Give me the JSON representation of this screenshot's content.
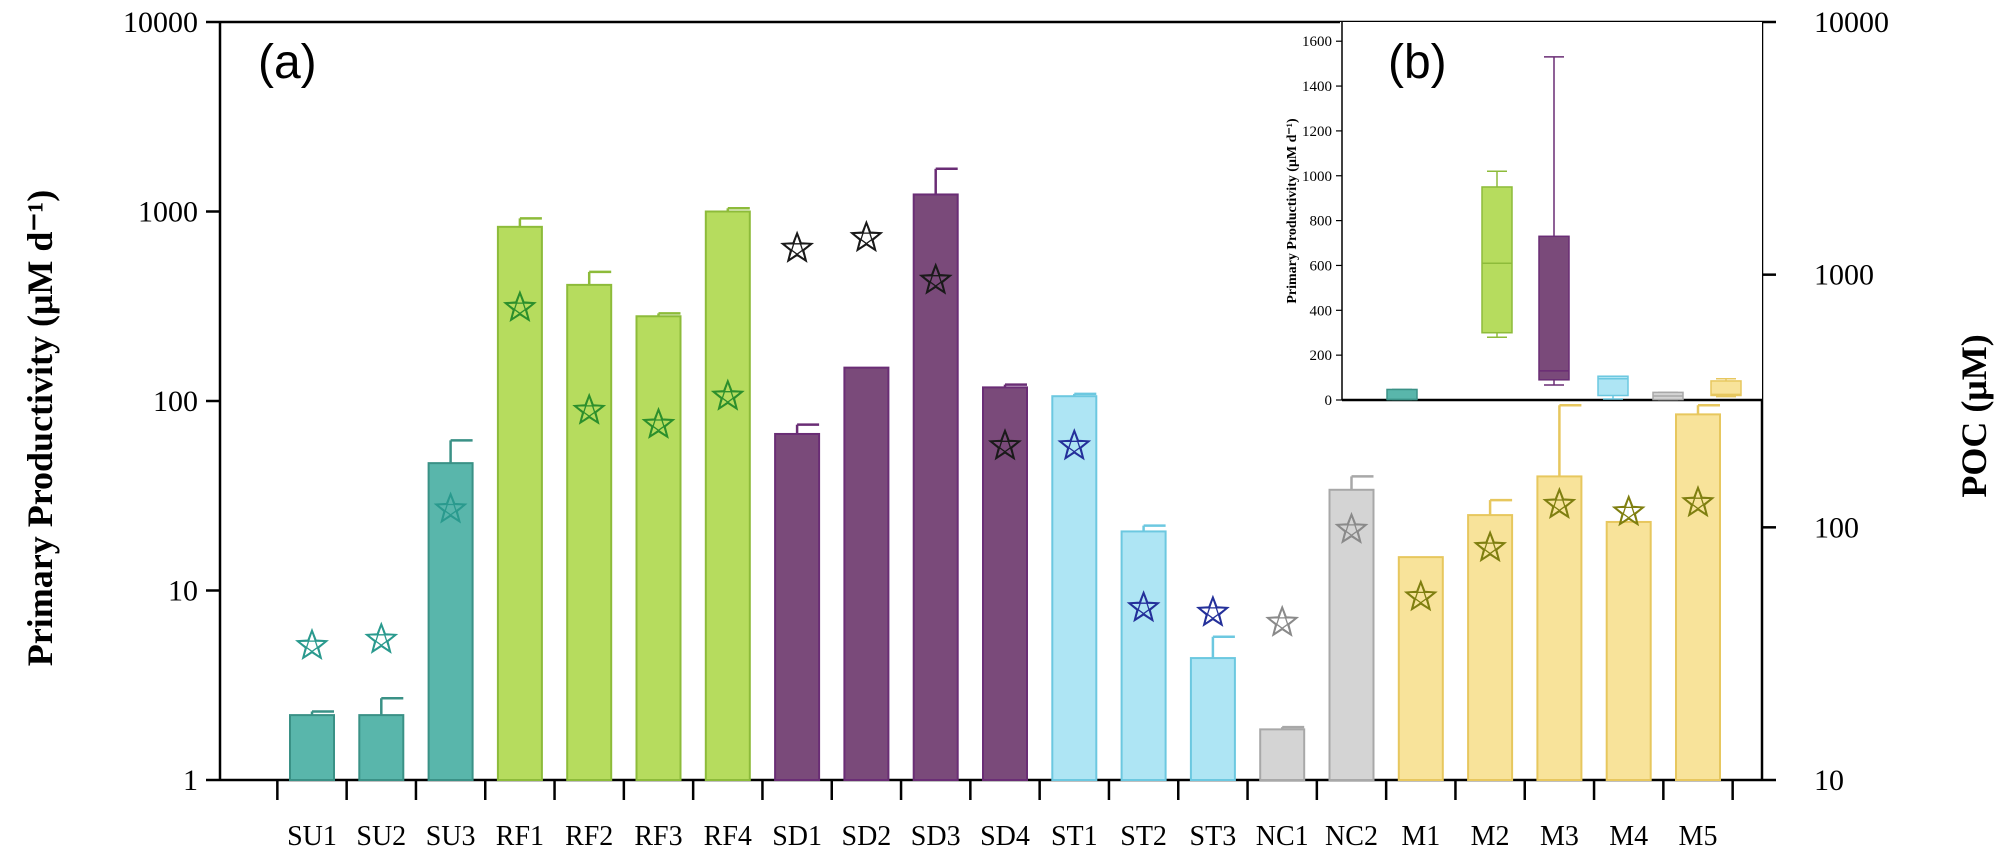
{
  "chart_data": [
    {
      "panel": "(a)",
      "type": "bar",
      "ylabel": "Primary Productivity (μM d⁻¹)",
      "y2label": "POC (μM)",
      "y_scale": "log",
      "ylim": [
        1,
        10000
      ],
      "y2lim": [
        10,
        10000
      ],
      "y_ticks": [
        "1",
        "10",
        "100",
        "1000",
        "10000"
      ],
      "y2_ticks": [
        "10",
        "100",
        "1000",
        "10000"
      ],
      "categories": [
        "SU1",
        "SU2",
        "SU3",
        "RF1",
        "RF2",
        "RF3",
        "RF4",
        "SD1",
        "SD2",
        "SD3",
        "SD4",
        "ST1",
        "ST2",
        "ST3",
        "NC1",
        "NC2",
        "M1",
        "M2",
        "M3",
        "M4",
        "M5"
      ],
      "groups": [
        "SU",
        "SU",
        "SU",
        "RF",
        "RF",
        "RF",
        "RF",
        "SD",
        "SD",
        "SD",
        "SD",
        "ST",
        "ST",
        "ST",
        "NC",
        "NC",
        "M",
        "M",
        "M",
        "M",
        "M"
      ],
      "series": [
        {
          "kind": "bar",
          "axis": "left",
          "values": [
            2.2,
            2.2,
            47,
            830,
            410,
            280,
            1000,
            67,
            150,
            1230,
            118,
            106,
            20.5,
            4.4,
            1.85,
            34,
            15,
            25,
            40,
            23,
            85
          ],
          "error_upper": [
            2.3,
            2.7,
            62,
            920,
            480,
            290,
            1040,
            75,
            null,
            1680,
            122,
            109,
            22,
            5.7,
            1.9,
            40,
            null,
            30,
            95,
            null,
            95
          ]
        },
        {
          "kind": "star",
          "axis": "right",
          "values": [
            34,
            36,
            118,
            740,
            290,
            255,
            330,
            1270,
            1400,
            950,
            210,
            210,
            48,
            46,
            42,
            98,
            53,
            83,
            123,
            115,
            125
          ]
        }
      ],
      "colors": {
        "SU": {
          "fill": "#59b6ab",
          "stroke": "#3a9186",
          "star": "#2a9a8e"
        },
        "RF": {
          "fill": "#b6dc5e",
          "stroke": "#8dbb3a",
          "star": "#2c8f2c"
        },
        "SD": {
          "fill": "#7a4a7a",
          "stroke": "#6a2d75",
          "star": "#1a1a1a"
        },
        "ST": {
          "fill": "#aee5f4",
          "stroke": "#6cc8e0",
          "star": "#24309a"
        },
        "NC": {
          "fill": "#d4d4d4",
          "stroke": "#a8a8a8",
          "star": "#8a8a8a"
        },
        "M": {
          "fill": "#f8e39a",
          "stroke": "#e7c75e",
          "star": "#7f7f10"
        }
      }
    },
    {
      "panel": "(b)",
      "type": "box",
      "ylabel": "Primary Productivity (μM d⁻¹)",
      "ylim": [
        0,
        1650
      ],
      "y_ticks": [
        "0",
        "200",
        "400",
        "600",
        "800",
        "1000",
        "1200",
        "1400",
        "1600"
      ],
      "boxes": [
        {
          "group": "SU",
          "min": 2.2,
          "q1": 2.2,
          "median": 2.2,
          "q3": 47,
          "max": 47
        },
        {
          "group": "RF",
          "min": 280,
          "q1": 300,
          "median": 610,
          "q3": 950,
          "max": 1020
        },
        {
          "group": "SD",
          "min": 67,
          "q1": 90,
          "median": 130,
          "q3": 730,
          "max": 1530
        },
        {
          "group": "ST",
          "min": 4.4,
          "q1": 20,
          "median": 95,
          "q3": 106,
          "max": 106
        },
        {
          "group": "NC",
          "min": 1.85,
          "q1": 1.85,
          "median": 18,
          "q3": 34,
          "max": 34
        },
        {
          "group": "M",
          "min": 15,
          "q1": 20,
          "median": 25,
          "q3": 85,
          "max": 95
        }
      ]
    }
  ]
}
